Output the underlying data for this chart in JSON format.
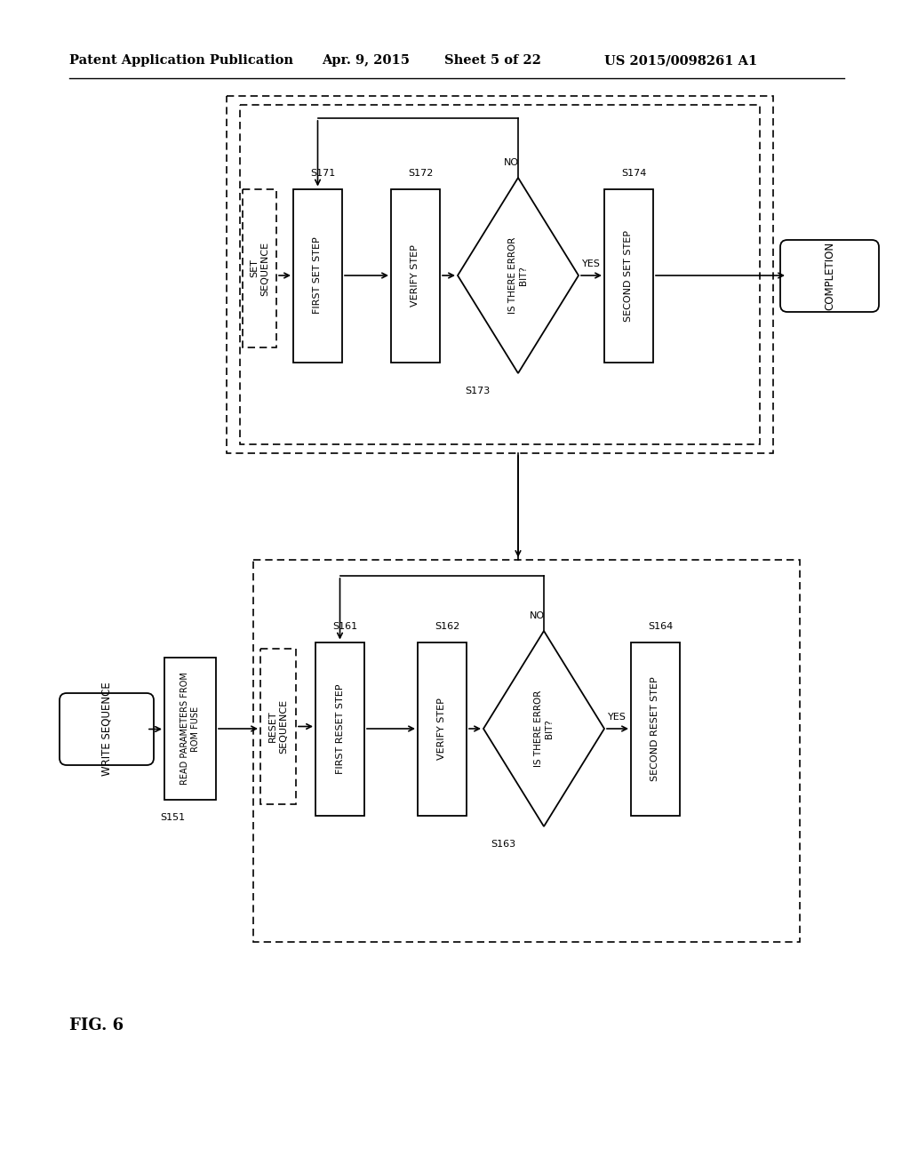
{
  "bg_color": "#ffffff",
  "header_text": "Patent Application Publication",
  "header_date": "Apr. 9, 2015",
  "header_sheet": "Sheet 5 of 22",
  "header_patent": "US 2015/0098261 A1",
  "fig_label": "FIG. 6"
}
